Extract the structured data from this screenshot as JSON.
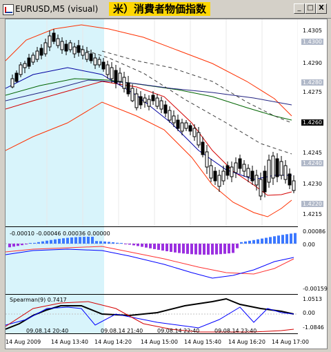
{
  "window": {
    "title": "EURUSD,M5 (visual)",
    "banner": "米）消費者物価指数",
    "minimize": "_",
    "maximize": "□",
    "close": "X"
  },
  "price_pane": {
    "labels": [
      "1.4305",
      "1.4300",
      "1.4290",
      "1.4280",
      "1.4275",
      "1.4260",
      "1.4245",
      "1.4240",
      "1.4230",
      "1.4220",
      "1.4215"
    ],
    "highlight_labels": [
      "1.4300",
      "1.4280",
      "1.4240",
      "1.4220"
    ],
    "current_label": "1.4260",
    "colors": {
      "bull": "#ffffff",
      "bear": "#000000",
      "band": "#ff3000",
      "ma_red": "#d40000",
      "ma_blue": "#0000a0",
      "ma_green": "#006400",
      "ma_navy": "#202080",
      "dash": "#404040",
      "session": "#d8f4fb"
    }
  },
  "macd_pane": {
    "info": "-0.00010 -0.00046 0.00036 0.00000",
    "labels": [
      "0.00086",
      "0.00",
      "-0.00159"
    ],
    "colors": {
      "bar_pos": "#3c78ff",
      "bar_neg": "#9b30e0",
      "signal": "#ff3030",
      "line": "#0000ff"
    }
  },
  "spearman_pane": {
    "info": "Spearman(9) 0.7417",
    "labels": [
      "1.0513",
      "0.00",
      "-1.0846"
    ],
    "colors": {
      "main": "#000000",
      "blue": "#0000ff",
      "red": "#d40000"
    }
  },
  "overlay_dates": [
    "09.08.14 20:40",
    "09.08.14 21:40",
    "09.08.14 22:40",
    "09.08.14 23:40"
  ],
  "time_axis": [
    "14 Aug 2009",
    "14 Aug 13:40",
    "14 Aug 14:20",
    "14 Aug 15:00",
    "14 Aug 15:40",
    "14 Aug 16:20",
    "14 Aug 17:00"
  ]
}
